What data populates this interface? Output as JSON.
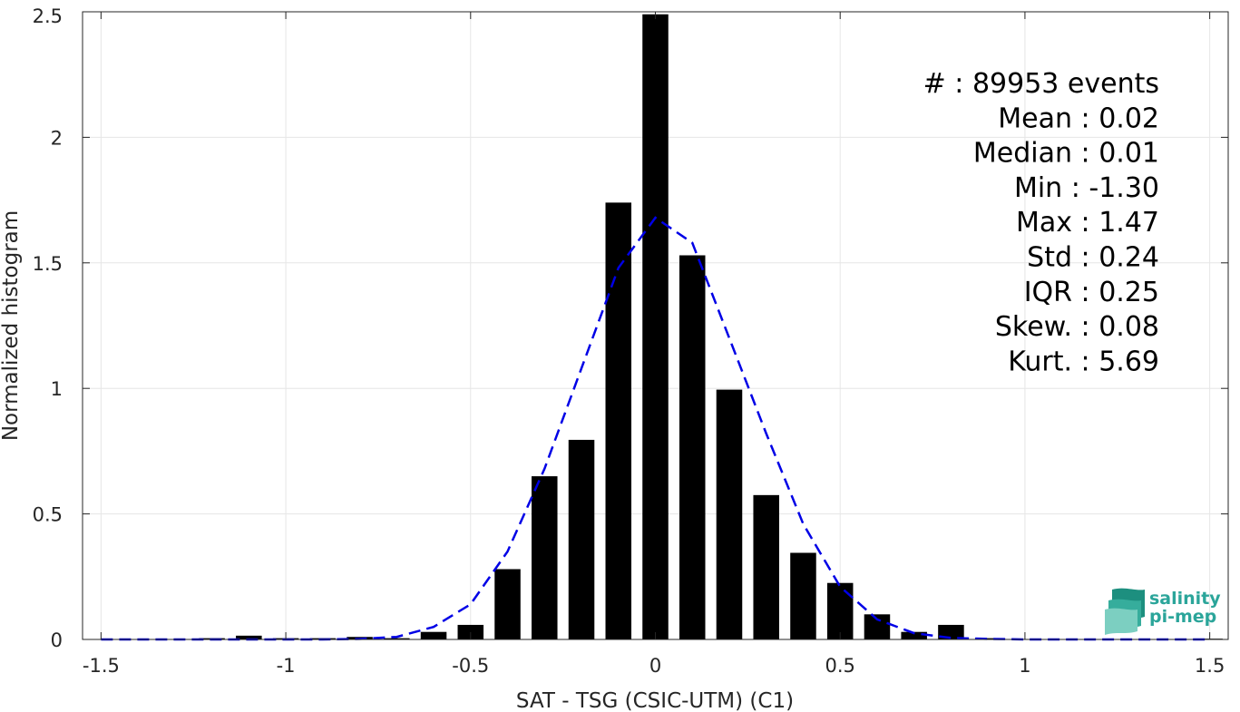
{
  "chart_data": {
    "type": "bar",
    "xlabel": "SAT - TSG (CSIC-UTM) (C1)",
    "ylabel": "Normalized histogram",
    "xlim": [
      -1.55,
      1.55
    ],
    "ylim": [
      0,
      2.5
    ],
    "xticks": [
      -1.5,
      -1,
      -0.5,
      0,
      0.5,
      1,
      1.5
    ],
    "xtick_labels": [
      "-1.5",
      "-1",
      "-0.5",
      "0",
      "0.5",
      "1",
      "1.5"
    ],
    "yticks": [
      0,
      0.5,
      1,
      1.5,
      2,
      2.5
    ],
    "ytick_labels": [
      "0",
      "0.5",
      "1",
      "1.5",
      "2",
      "2.5"
    ],
    "grid": true,
    "bar_width": 0.07,
    "bars": {
      "x": [
        -1.4,
        -1.3,
        -1.2,
        -1.1,
        -1.0,
        -0.9,
        -0.8,
        -0.7,
        -0.6,
        -0.5,
        -0.4,
        -0.3,
        -0.2,
        -0.1,
        0.0,
        0.1,
        0.2,
        0.3,
        0.4,
        0.5,
        0.6,
        0.7,
        0.8,
        0.9,
        1.0,
        1.1,
        1.2,
        1.3,
        1.4,
        1.5
      ],
      "y": [
        0.0,
        0.0,
        0.005,
        0.015,
        0.005,
        0.005,
        0.01,
        0.005,
        0.03,
        0.058,
        0.28,
        0.65,
        0.795,
        1.74,
        2.49,
        1.53,
        0.995,
        0.575,
        0.345,
        0.225,
        0.1,
        0.03,
        0.058,
        0.005,
        0.0,
        0.0,
        0.0,
        0.0,
        0.0,
        0.003
      ],
      "color": "#000000"
    },
    "fit_line": {
      "style": "dashed",
      "color": "#0000e6",
      "x": [
        -1.5,
        -1.4,
        -1.3,
        -1.2,
        -1.1,
        -1.0,
        -0.9,
        -0.8,
        -0.7,
        -0.6,
        -0.5,
        -0.4,
        -0.3,
        -0.2,
        -0.1,
        0.0,
        0.1,
        0.2,
        0.3,
        0.4,
        0.5,
        0.6,
        0.7,
        0.8,
        0.9,
        1.0,
        1.1,
        1.2,
        1.3,
        1.4,
        1.5
      ],
      "y": [
        0.0,
        0.0,
        0.0,
        0.0,
        0.0,
        0.0,
        0.0,
        0.002,
        0.01,
        0.05,
        0.14,
        0.35,
        0.68,
        1.08,
        1.48,
        1.68,
        1.58,
        1.2,
        0.82,
        0.46,
        0.21,
        0.08,
        0.025,
        0.006,
        0.002,
        0.0,
        0.0,
        0.0,
        0.0,
        0.0,
        0.0
      ]
    }
  },
  "stats": [
    {
      "label": "#  ",
      "value": ": 89953 events"
    },
    {
      "label": "Mean ",
      "value": ": 0.02"
    },
    {
      "label": "Median ",
      "value": ": 0.01"
    },
    {
      "label": "Min ",
      "value": ": -1.30"
    },
    {
      "label": "Max ",
      "value": ": 1.47"
    },
    {
      "label": "Std ",
      "value": ": 0.24"
    },
    {
      "label": "IQR ",
      "value": ": 0.25"
    },
    {
      "label": "Skew. ",
      "value": ": 0.08"
    },
    {
      "label": "Kurt. ",
      "value": ": 5.69"
    }
  ],
  "logo": {
    "line1": "salinity",
    "line2": "pi-mep",
    "icon": "wave-layers-icon",
    "color": "#2ba59a"
  }
}
